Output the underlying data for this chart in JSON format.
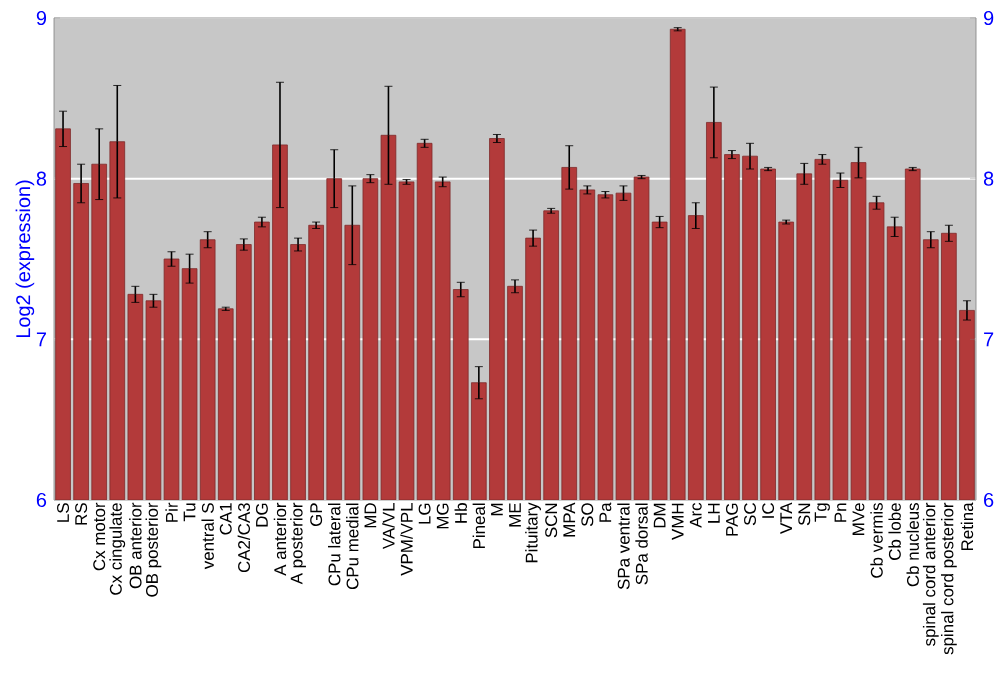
{
  "chart_data": {
    "type": "bar",
    "ylabel": "Log2 (expression)",
    "categories": [
      "LS",
      "RS",
      "Cx motor",
      "Cx cingulate",
      "OB anterior",
      "OB posterior",
      "Pir",
      "Tu",
      "ventral S",
      "CA1",
      "CA2/CA3",
      "DG",
      "A anterior",
      "A posterior",
      "GP",
      "CPu lateral",
      "CPu medial",
      "MD",
      "VA/VL",
      "VPM/VPL",
      "LG",
      "MG",
      "Hb",
      "Pineal",
      "M",
      "ME",
      "Pituitary",
      "SCN",
      "MPA",
      "SO",
      "Pa",
      "SPa ventral",
      "SPa dorsal",
      "DM",
      "VMH",
      "Arc",
      "LH",
      "PAG",
      "SC",
      "IC",
      "VTA",
      "SN",
      "Tg",
      "Pn",
      "MVe",
      "Cb vermis",
      "Cb lobe",
      "Cb nucleus",
      "spinal cord anterior",
      "spinal cord posterior",
      "Retina"
    ],
    "values": [
      8.31,
      7.97,
      8.09,
      8.23,
      7.28,
      7.24,
      7.5,
      7.44,
      7.62,
      7.19,
      7.59,
      7.73,
      8.21,
      7.59,
      7.71,
      8.0,
      7.71,
      8.0,
      8.27,
      7.98,
      8.22,
      7.98,
      7.31,
      6.73,
      8.25,
      7.33,
      7.63,
      7.8,
      8.07,
      7.93,
      7.9,
      7.91,
      8.01,
      7.73,
      8.93,
      7.77,
      8.35,
      8.15,
      8.14,
      8.06,
      7.73,
      8.03,
      8.12,
      7.99,
      8.1,
      7.85,
      7.7,
      8.06,
      7.62,
      7.66,
      7.18
    ],
    "errors": [
      0.11,
      0.12,
      0.22,
      0.35,
      0.05,
      0.04,
      0.045,
      0.09,
      0.05,
      0.01,
      0.035,
      0.03,
      0.39,
      0.04,
      0.02,
      0.18,
      0.245,
      0.025,
      0.305,
      0.015,
      0.025,
      0.03,
      0.045,
      0.1,
      0.025,
      0.04,
      0.05,
      0.015,
      0.135,
      0.025,
      0.02,
      0.045,
      0.01,
      0.035,
      0.01,
      0.08,
      0.22,
      0.025,
      0.08,
      0.01,
      0.012,
      0.065,
      0.03,
      0.045,
      0.095,
      0.04,
      0.06,
      0.01,
      0.05,
      0.05,
      0.06
    ],
    "color": "#b33a3a",
    "ylim": [
      6,
      9
    ],
    "yticks": [
      6,
      7,
      8,
      9
    ],
    "y2lim": [
      6,
      9
    ],
    "y2ticks": [
      6,
      7,
      8,
      9
    ],
    "grid": "y"
  }
}
